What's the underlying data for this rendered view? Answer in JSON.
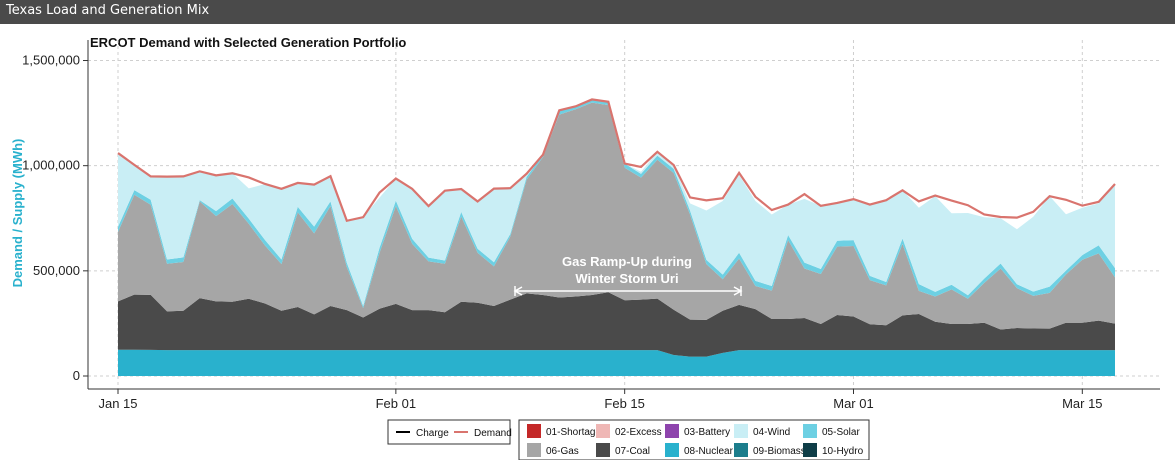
{
  "header": {
    "title": "Texas Load and Generation Mix"
  },
  "chart_data": {
    "type": "area",
    "title": "ERCOT Demand with Selected Generation Portfolio",
    "xlabel": "",
    "ylabel": "Demand / Supply (MWh)",
    "ylim": [
      0,
      1550000
    ],
    "x_ticks": [
      "Jan 15",
      "Feb 01",
      "Feb 15",
      "Mar 01",
      "Mar 15"
    ],
    "y_ticks": [
      "0",
      "500,000",
      "1,000,000",
      "1,500,000"
    ],
    "x_start": "2021-01-15",
    "x_end": "2021-03-17",
    "grid": true,
    "stacked": true,
    "series": [
      {
        "name": "08-Nuclear",
        "color": "#29b1cd",
        "values": [
          125000,
          125000,
          124000,
          123000,
          123000,
          123000,
          123000,
          123000,
          123000,
          123000,
          123000,
          123000,
          123000,
          123000,
          123000,
          123000,
          123000,
          123000,
          123000,
          123000,
          123000,
          123000,
          123000,
          123000,
          123000,
          123000,
          123000,
          123000,
          123000,
          123000,
          123000,
          123000,
          123000,
          123000,
          100000,
          92000,
          92000,
          110000,
          123000,
          123000,
          123000,
          123000,
          123000,
          123000,
          123000,
          123000,
          123000,
          123000,
          123000,
          123000,
          123000,
          123000,
          123000,
          123000,
          123000,
          123000,
          123000,
          123000,
          123000,
          123000,
          123000,
          123000
        ]
      },
      {
        "name": "07-Coal",
        "color": "#4a4a4a",
        "values": [
          230000,
          262000,
          262000,
          184000,
          187000,
          247000,
          232000,
          230000,
          244000,
          222000,
          187000,
          205000,
          170000,
          210000,
          190000,
          155000,
          197000,
          220000,
          190000,
          190000,
          180000,
          230000,
          225000,
          210000,
          240000,
          270000,
          262000,
          250000,
          255000,
          262000,
          275000,
          237000,
          240000,
          245000,
          215000,
          176000,
          175000,
          200000,
          215000,
          195000,
          148000,
          148000,
          153000,
          124000,
          167000,
          160000,
          123000,
          118000,
          165000,
          172000,
          135000,
          124000,
          124000,
          130000,
          98000,
          105000,
          103000,
          102000,
          130000,
          130000,
          140000,
          126000
        ]
      },
      {
        "name": "06-Gas",
        "color": "#a6a6a6",
        "values": [
          330000,
          475000,
          428000,
          227000,
          232000,
          460000,
          405000,
          465000,
          357000,
          275000,
          222000,
          450000,
          385000,
          475000,
          205000,
          45000,
          265000,
          465000,
          315000,
          232000,
          231000,
          405000,
          238000,
          188000,
          300000,
          540000,
          656000,
          870000,
          890000,
          915000,
          890000,
          630000,
          580000,
          660000,
          650000,
          500000,
          265000,
          150000,
          220000,
          110000,
          135000,
          375000,
          235000,
          238000,
          325000,
          335000,
          210000,
          190000,
          340000,
          110000,
          120000,
          165000,
          120000,
          190000,
          290000,
          190000,
          155000,
          170000,
          230000,
          300000,
          320000,
          220000
        ]
      },
      {
        "name": "05-Solar",
        "color": "#6dd0e3",
        "values": [
          24000,
          22000,
          24000,
          20000,
          22000,
          6000,
          24000,
          26000,
          24000,
          26000,
          22000,
          26000,
          32000,
          22000,
          20000,
          10000,
          24000,
          25000,
          24000,
          18000,
          15000,
          22000,
          19000,
          20000,
          12000,
          14000,
          11000,
          20000,
          14000,
          15000,
          16000,
          20000,
          18000,
          20000,
          20000,
          18000,
          20000,
          22000,
          28000,
          24000,
          22000,
          24000,
          28000,
          24000,
          28000,
          28000,
          20000,
          16000,
          26000,
          32000,
          22000,
          22000,
          17000,
          20000,
          24000,
          18000,
          20000,
          30000,
          18000,
          22000,
          38000,
          44000
        ]
      },
      {
        "name": "04-Wind",
        "color": "#c9eef5",
        "values": [
          351000,
          120000,
          111000,
          394000,
          385000,
          137000,
          170000,
          120000,
          144000,
          267000,
          336000,
          114000,
          200000,
          120000,
          200000,
          422000,
          239000,
          106000,
          238000,
          245000,
          332000,
          109000,
          225000,
          350000,
          218000,
          15000,
          0,
          0,
          0,
          0,
          0,
          0,
          10000,
          18000,
          15000,
          35000,
          235000,
          350000,
          370000,
          380000,
          340000,
          145000,
          303000,
          300000,
          180000,
          195000,
          339000,
          389000,
          229000,
          363000,
          455000,
          340000,
          391000,
          292000,
          215000,
          262000,
          356000,
          430000,
          268000,
          225000,
          200000,
          400000
        ]
      }
    ],
    "demand": {
      "name": "Demand",
      "color": "#d9746e",
      "values": [
        1060000,
        1004000,
        949000,
        947000,
        949000,
        973000,
        954000,
        964000,
        944000,
        913000,
        890000,
        918000,
        910000,
        950000,
        738000,
        710000,
        872000,
        939000,
        890000,
        808000,
        871000,
        889000,
        828000,
        891000,
        893000,
        962000,
        1052000,
        1263000,
        1281000,
        1315000,
        1304000,
        1010000,
        994000,
        1066000,
        1003000,
        849000,
        835000,
        845000,
        966000,
        852000,
        789000,
        815000,
        865000,
        808000,
        823000,
        841000,
        815000,
        816000,
        867000,
        830000,
        858000,
        834000,
        812000,
        768000,
        756000,
        753000,
        781000,
        822000,
        838000,
        810000,
        828000,
        858000
      ]
    },
    "annotation": "Gas Ramp-Up during Winter Storm Uri",
    "legend": {
      "lines": [
        {
          "name": "Charge",
          "color": "#000000"
        },
        {
          "name": "Demand",
          "color": "#d9746e"
        }
      ],
      "fills": [
        {
          "name": "01-Shortage",
          "color": "#c42828"
        },
        {
          "name": "02-Excess",
          "color": "#efb7b5"
        },
        {
          "name": "03-Battery",
          "color": "#8e44ad"
        },
        {
          "name": "04-Wind",
          "color": "#c9eef5"
        },
        {
          "name": "05-Solar",
          "color": "#6dd0e3"
        },
        {
          "name": "06-Gas",
          "color": "#a6a6a6"
        },
        {
          "name": "07-Coal",
          "color": "#4a4a4a"
        },
        {
          "name": "08-Nuclear",
          "color": "#29b1cd"
        },
        {
          "name": "09-Biomass",
          "color": "#1b7d8c"
        },
        {
          "name": "10-Hydro",
          "color": "#0e3d47"
        }
      ]
    }
  }
}
